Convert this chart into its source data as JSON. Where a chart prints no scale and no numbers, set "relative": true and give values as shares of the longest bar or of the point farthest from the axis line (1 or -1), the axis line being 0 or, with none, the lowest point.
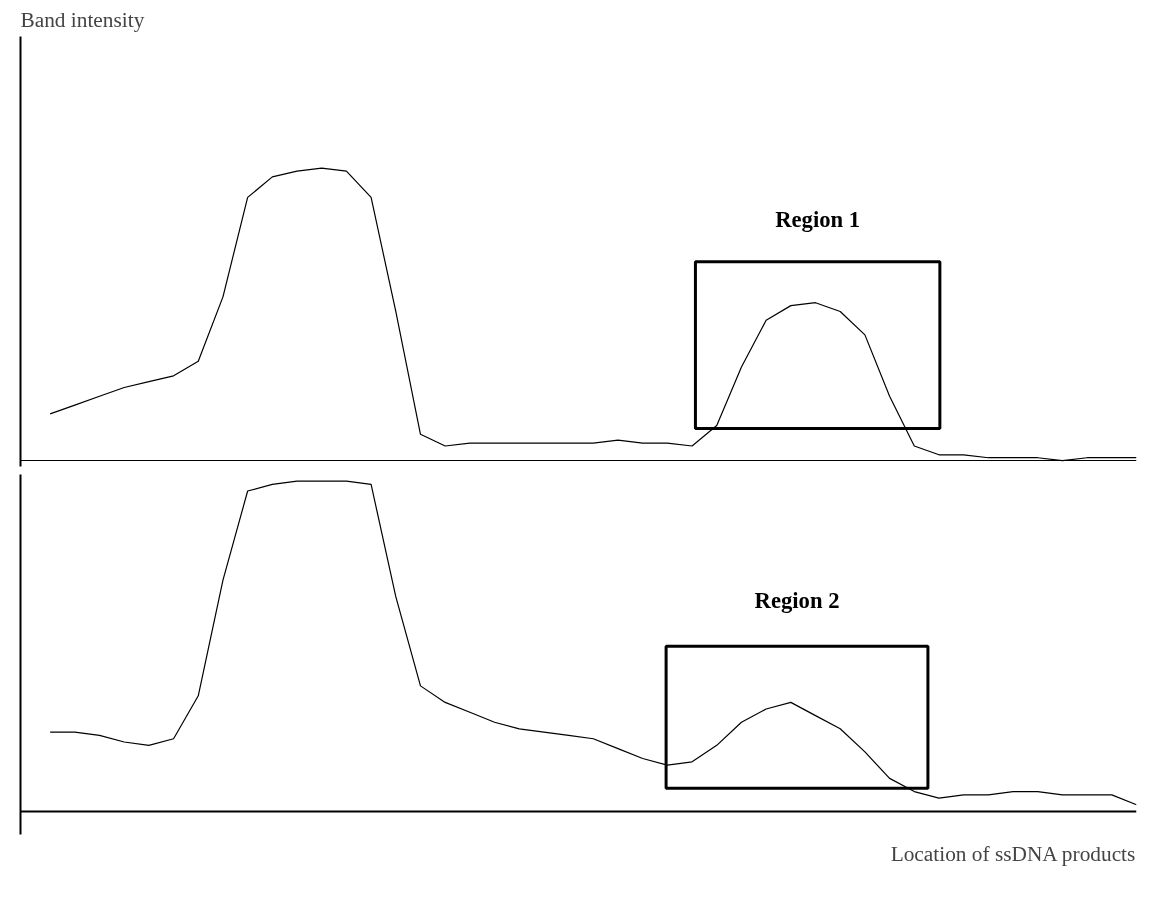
{
  "chart_data": [
    {
      "type": "line",
      "relative": true,
      "ylabel": "Band intensity",
      "grid": false,
      "marker": "none",
      "line_style": "solid",
      "categories": [
        null,
        null,
        null,
        null,
        null,
        null,
        null,
        null,
        null,
        null,
        null,
        null,
        null,
        null,
        null,
        null,
        null,
        null,
        null,
        null,
        null,
        null,
        null,
        null,
        null,
        null,
        null,
        null,
        null,
        null,
        null,
        null,
        null,
        null,
        null,
        null,
        null,
        null,
        null,
        null,
        null,
        null,
        null,
        null,
        null
      ],
      "series": [
        {
          "color": "#000000",
          "values": [
            0.16,
            0.19,
            0.22,
            0.25,
            0.27,
            0.29,
            0.34,
            0.56,
            0.9,
            0.97,
            0.99,
            1,
            0.99,
            0.9,
            0.51,
            0.09,
            0.05,
            0.06,
            0.06,
            0.06,
            0.06,
            0.06,
            0.06,
            0.07,
            0.06,
            0.06,
            0.05,
            0.12,
            0.32,
            0.48,
            0.53,
            0.54,
            0.51,
            0.43,
            0.22,
            0.05,
            0.02,
            0.02,
            0.01,
            0.01,
            0.01,
            0,
            0.01,
            0.01,
            0.01
          ]
        }
      ],
      "annotations": [
        "Region 1"
      ]
    },
    {
      "type": "line",
      "relative": true,
      "xlabel": "Location of ssDNA products",
      "grid": false,
      "marker": "none",
      "line_style": "solid",
      "categories": [
        null,
        null,
        null,
        null,
        null,
        null,
        null,
        null,
        null,
        null,
        null,
        null,
        null,
        null,
        null,
        null,
        null,
        null,
        null,
        null,
        null,
        null,
        null,
        null,
        null,
        null,
        null,
        null,
        null,
        null,
        null,
        null,
        null,
        null,
        null,
        null,
        null,
        null,
        null,
        null,
        null,
        null,
        null,
        null,
        null
      ],
      "series": [
        {
          "color": "#000000",
          "values": [
            0.24,
            0.24,
            0.23,
            0.21,
            0.2,
            0.22,
            0.35,
            0.7,
            0.97,
            0.99,
            1,
            1,
            1,
            0.99,
            0.65,
            0.38,
            0.33,
            0.3,
            0.27,
            0.25,
            0.24,
            0.23,
            0.22,
            0.19,
            0.16,
            0.14,
            0.15,
            0.2,
            0.27,
            0.31,
            0.33,
            0.29,
            0.25,
            0.18,
            0.1,
            0.06,
            0.04,
            0.05,
            0.05,
            0.06,
            0.06,
            0.05,
            0.05,
            0.05,
            0.02
          ]
        }
      ],
      "annotations": [
        "Region 2"
      ]
    }
  ]
}
